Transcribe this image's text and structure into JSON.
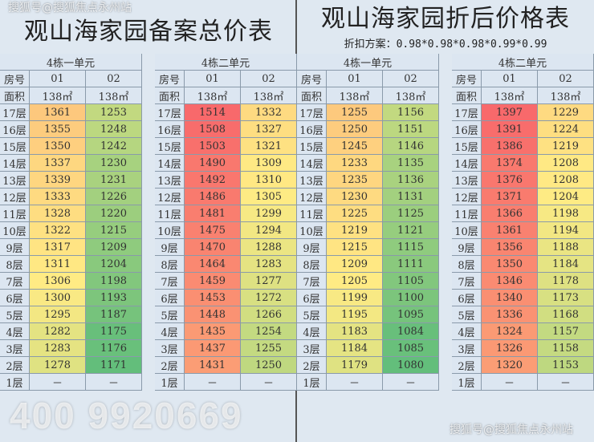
{
  "left_title": "观山海家园备案总价表",
  "right_title": "观山海家园折后价格表",
  "right_subtitle": "折扣方案：0.98*0.98*0.98*0.99*0.99",
  "watermark_top": "搜狐号@搜狐焦点永州站",
  "watermark_bottom": "搜狐号@搜狐焦点永州站",
  "watermark_phone": "400 9920669",
  "labels": {
    "room": "房号",
    "area": "面积",
    "col1": "01",
    "col2": "02",
    "area_value": "138㎡",
    "empty": "－"
  },
  "floors": [
    "17层",
    "16层",
    "15层",
    "14层",
    "13层",
    "12层",
    "11层",
    "10层",
    "9层",
    "8层",
    "7层",
    "6层",
    "5层",
    "4层",
    "3层",
    "2层",
    "1层"
  ],
  "color_scale": {
    "low": "#63be7b",
    "mid": "#ffeb84",
    "high": "#f8696b"
  },
  "tables": [
    {
      "unit": "4栋一单元",
      "group": "left",
      "col1": [
        1361,
        1355,
        1350,
        1337,
        1339,
        1333,
        1328,
        1322,
        1317,
        1311,
        1306,
        1300,
        1295,
        1282,
        1283,
        1278
      ],
      "col2": [
        1253,
        1248,
        1242,
        1230,
        1231,
        1226,
        1220,
        1215,
        1209,
        1204,
        1198,
        1193,
        1187,
        1175,
        1176,
        1171
      ]
    },
    {
      "unit": "4栋二单元",
      "group": "left",
      "col1": [
        1514,
        1508,
        1503,
        1490,
        1492,
        1486,
        1481,
        1475,
        1470,
        1464,
        1459,
        1453,
        1448,
        1435,
        1437,
        1431
      ],
      "col2": [
        1332,
        1327,
        1321,
        1309,
        1310,
        1305,
        1299,
        1294,
        1288,
        1283,
        1277,
        1272,
        1266,
        1254,
        1255,
        1250
      ]
    },
    {
      "unit": "4栋一单元",
      "group": "right",
      "col1": [
        1255,
        1250,
        1245,
        1233,
        1235,
        1230,
        1225,
        1219,
        1215,
        1209,
        1205,
        1199,
        1195,
        1183,
        1184,
        1179
      ],
      "col2": [
        1156,
        1151,
        1146,
        1135,
        1136,
        1131,
        1125,
        1121,
        1115,
        1111,
        1105,
        1100,
        1095,
        1084,
        1085,
        1080
      ]
    },
    {
      "unit": "4栋二单元",
      "group": "right",
      "col1": [
        1397,
        1391,
        1386,
        1374,
        1376,
        1371,
        1366,
        1361,
        1356,
        1350,
        1346,
        1340,
        1336,
        1324,
        1326,
        1320
      ],
      "col2": [
        1229,
        1224,
        1219,
        1208,
        1208,
        1204,
        1198,
        1194,
        1188,
        1184,
        1178,
        1173,
        1168,
        1157,
        1158,
        1153
      ]
    }
  ]
}
